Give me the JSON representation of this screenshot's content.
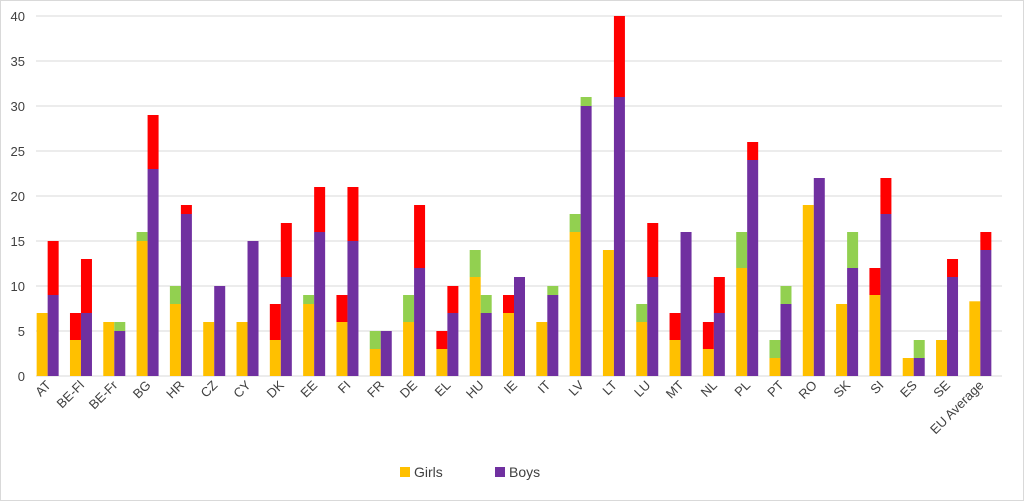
{
  "chart_data": {
    "type": "bar",
    "title": "",
    "xlabel": "",
    "ylabel": "",
    "ylim": [
      0,
      40
    ],
    "yticks": [
      0,
      5,
      10,
      15,
      20,
      25,
      30,
      35,
      40
    ],
    "grid": true,
    "legend": {
      "placement": "bottom",
      "entries": [
        "Girls",
        "Boys"
      ]
    },
    "colors": {
      "Girls": "#ffc000",
      "Boys": "#7030a0",
      "red_segment": "#ff0000",
      "green_segment": "#92d050",
      "grid": "#d9d9d9"
    },
    "categories": [
      "AT",
      "BE-Fl",
      "BE-Fr",
      "BG",
      "HR",
      "CZ",
      "CY",
      "DK",
      "EE",
      "FI",
      "FR",
      "DE",
      "EL",
      "HU",
      "IE",
      "IT",
      "LV",
      "LT",
      "LU",
      "MT",
      "NL",
      "PL",
      "PT",
      "RO",
      "SK",
      "SI",
      "ES",
      "SE",
      "EU Average"
    ],
    "series": [
      {
        "name": "Girls",
        "values": [
          7,
          4,
          6,
          15,
          8,
          6,
          6,
          4,
          8,
          6,
          3,
          6,
          3,
          11,
          7,
          6,
          16,
          14,
          6,
          4,
          3,
          12,
          2,
          19,
          8,
          9,
          2,
          4,
          8.3
        ],
        "segment_values": [
          0,
          3,
          0,
          1,
          2,
          0,
          0,
          4,
          1,
          3,
          2,
          3,
          2,
          3,
          2,
          0,
          2,
          0,
          2,
          3,
          3,
          4,
          2,
          0,
          0,
          3,
          0,
          0,
          0
        ],
        "segment_colors": [
          "",
          "red",
          "",
          "green",
          "green",
          "",
          "",
          "red",
          "green",
          "red",
          "green",
          "green",
          "red",
          "green",
          "red",
          "",
          "green",
          "",
          "green",
          "red",
          "red",
          "green",
          "green",
          "",
          "",
          "red",
          "",
          "",
          ""
        ]
      },
      {
        "name": "Boys",
        "values": [
          9,
          7,
          5,
          23,
          18,
          10,
          15,
          11,
          16,
          15,
          5,
          12,
          7,
          7,
          11,
          9,
          30,
          31,
          11,
          16,
          7,
          24,
          8,
          22,
          12,
          18,
          2,
          11,
          14
        ],
        "segment_values": [
          6,
          6,
          1,
          6,
          1,
          0,
          0,
          6,
          5,
          6,
          0,
          7,
          3,
          2,
          0,
          1,
          1,
          9,
          6,
          0,
          4,
          2,
          2,
          0,
          4,
          4,
          2,
          2,
          2
        ],
        "segment_colors": [
          "red",
          "red",
          "green",
          "red",
          "red",
          "",
          "",
          "red",
          "red",
          "red",
          "",
          "red",
          "red",
          "green",
          "",
          "green",
          "green",
          "red",
          "red",
          "",
          "red",
          "red",
          "green",
          "",
          "green",
          "red",
          "green",
          "red",
          "red"
        ]
      }
    ]
  }
}
